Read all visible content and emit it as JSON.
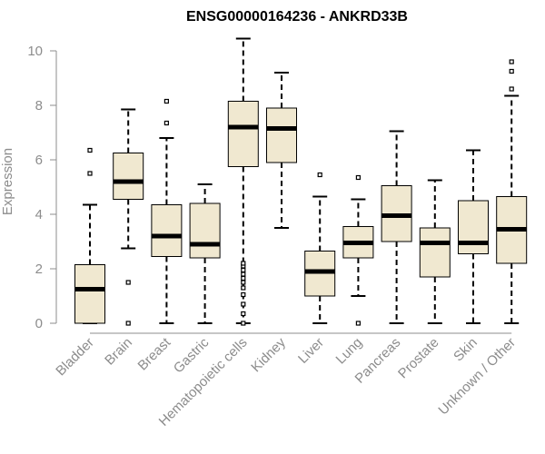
{
  "chart_data": {
    "type": "box",
    "title": "ENSG00000164236 - ANKRD33B",
    "xlabel": "",
    "ylabel": "Expression",
    "ylim": [
      0,
      10.5
    ],
    "yticks": [
      "0",
      "2",
      "4",
      "6",
      "8",
      "10"
    ],
    "box_fill": "#f0e8d0",
    "categories": [
      "Bladder",
      "Brain",
      "Breast",
      "Gastric",
      "Hematopoietic cells",
      "Kidney",
      "Liver",
      "Lung",
      "Pancreas",
      "Prostate",
      "Skin",
      "Unknown / Other"
    ],
    "boxes": [
      {
        "min": 0.0,
        "q1": 0.0,
        "median": 1.25,
        "q3": 2.15,
        "max": 4.35,
        "outliers": [
          5.5,
          6.35
        ]
      },
      {
        "min": 2.75,
        "q1": 4.55,
        "median": 5.2,
        "q3": 6.25,
        "max": 7.85,
        "outliers": [
          0.0,
          1.5
        ]
      },
      {
        "min": 0.0,
        "q1": 2.45,
        "median": 3.2,
        "q3": 4.35,
        "max": 6.8,
        "outliers": [
          7.35,
          8.15
        ]
      },
      {
        "min": 0.0,
        "q1": 2.4,
        "median": 2.9,
        "q3": 4.4,
        "max": 5.1,
        "outliers": []
      },
      {
        "min": 0.0,
        "q1": 5.75,
        "median": 7.2,
        "q3": 8.15,
        "max": 10.45,
        "outliers": [
          0.0,
          0.35,
          0.7,
          1.05,
          1.3,
          1.5,
          1.65,
          1.8,
          1.95,
          2.1,
          2.2
        ]
      },
      {
        "min": 3.5,
        "q1": 5.9,
        "median": 7.15,
        "q3": 7.9,
        "max": 9.2,
        "outliers": []
      },
      {
        "min": 0.0,
        "q1": 1.0,
        "median": 1.9,
        "q3": 2.65,
        "max": 4.65,
        "outliers": [
          5.45
        ]
      },
      {
        "min": 1.0,
        "q1": 2.4,
        "median": 2.95,
        "q3": 3.55,
        "max": 4.55,
        "outliers": [
          0.0,
          5.35
        ]
      },
      {
        "min": 0.0,
        "q1": 3.0,
        "median": 3.95,
        "q3": 5.05,
        "max": 7.05,
        "outliers": []
      },
      {
        "min": 0.0,
        "q1": 1.7,
        "median": 2.95,
        "q3": 3.5,
        "max": 5.25,
        "outliers": []
      },
      {
        "min": 0.0,
        "q1": 2.55,
        "median": 2.95,
        "q3": 4.5,
        "max": 6.35,
        "outliers": []
      },
      {
        "min": 0.0,
        "q1": 2.2,
        "median": 3.45,
        "q3": 4.65,
        "max": 8.35,
        "outliers": [
          8.6,
          9.25,
          9.6
        ]
      }
    ]
  }
}
